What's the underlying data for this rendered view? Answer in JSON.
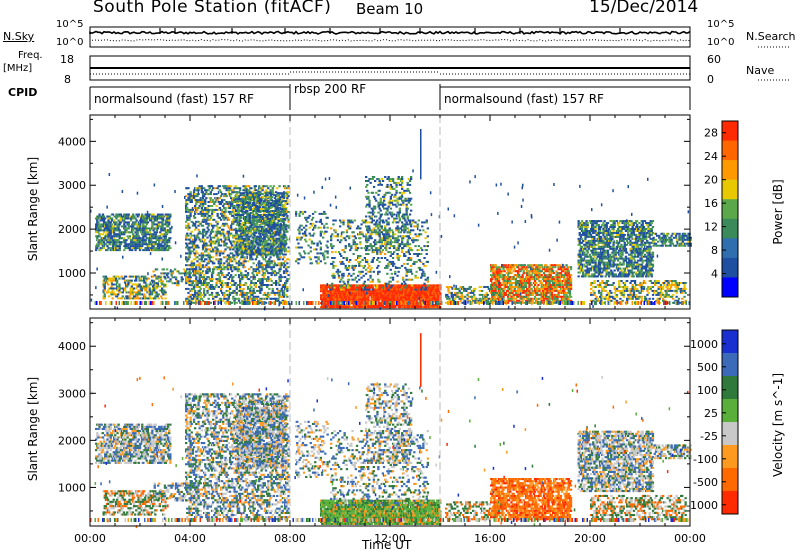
{
  "header": {
    "title": "South Pole Station (fitACF)",
    "beam": "Beam 10",
    "date": "15/Dec/2014"
  },
  "top_panels": {
    "nsky_label": "N.Sky",
    "nsearch_label": "N.Search",
    "nsky_ticks": [
      "10^5",
      "10^0"
    ],
    "nsearch_ticks": [
      "10^5",
      "10^0"
    ],
    "freq_label": "Freq.",
    "freq_unit": "[MHz]",
    "freq_ticks": [
      "18",
      "8"
    ],
    "nave_ticks": [
      "60",
      "0"
    ],
    "nave_label": "Nave",
    "cpid_label": "CPID",
    "cpid_segments": [
      {
        "label": "normalsound (fast) 157 RF",
        "start_h": 0,
        "end_h": 8
      },
      {
        "label": "rbsp 200 RF",
        "start_h": 8,
        "end_h": 14
      },
      {
        "label": "normalsound (fast) 157 RF",
        "start_h": 14,
        "end_h": 24
      }
    ]
  },
  "colors": {
    "power": [
      "#0000ff",
      "#1f4fa0",
      "#2f6fb0",
      "#3a8a5a",
      "#5aa84a",
      "#e8c800",
      "#ff9900",
      "#ff6600",
      "#ff2a00"
    ],
    "velocity": [
      "#1a2fd0",
      "#3a6ab8",
      "#2f7a3a",
      "#5aaf3a",
      "#c8c8c8",
      "#ff9a20",
      "#ff6a00",
      "#ff2a00"
    ]
  },
  "chart_data": [
    {
      "type": "heatmap",
      "name": "power",
      "ylabel": "Slant Range [km]",
      "xlabel": "Time UT",
      "x_ticks": [
        "00:00",
        "04:00",
        "08:00",
        "12:00",
        "16:00",
        "20:00",
        "00:00"
      ],
      "y_ticks": [
        "1000",
        "2000",
        "3000",
        "4000"
      ],
      "xlim": [
        0,
        24
      ],
      "ylim": [
        180,
        4600
      ],
      "colorbar_label": "Power [dB]",
      "colorbar_ticks": [
        "4",
        "8",
        "12",
        "16",
        "20",
        "24",
        "28"
      ],
      "colorbar_range": [
        0,
        30
      ]
    },
    {
      "type": "heatmap",
      "name": "velocity",
      "ylabel": "Slant Range [km]",
      "xlabel": "Time UT",
      "x_ticks": [
        "00:00",
        "04:00",
        "08:00",
        "12:00",
        "16:00",
        "20:00",
        "00:00"
      ],
      "y_ticks": [
        "1000",
        "2000",
        "3000",
        "4000"
      ],
      "xlim": [
        0,
        24
      ],
      "ylim": [
        180,
        4600
      ],
      "colorbar_label": "Velocity [m s^-1]",
      "colorbar_ticks": [
        "1000",
        "500",
        "100",
        "25",
        "-25",
        "-100",
        "-500",
        "-1000"
      ]
    }
  ]
}
